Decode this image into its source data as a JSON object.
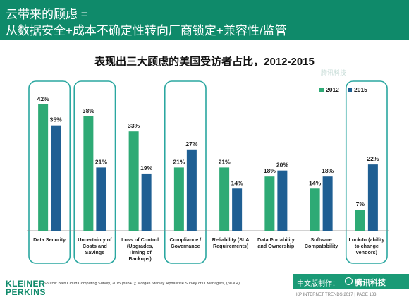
{
  "header": {
    "line1": "云带来的顾虑 =",
    "line2": "从数据安全+成本不确定性转向厂商锁定+兼容性/监管"
  },
  "chart_data": {
    "type": "bar",
    "title": "表现出三大顾虑的美国受访者占比，2012-2015",
    "categories": [
      "Data Security",
      "Uncertainty of Costs and Savings",
      "Loss of Control (Upgrades, Timing of Backups)",
      "Compliance / Governance",
      "Reliability (SLA Requirements)",
      "Data Portability and Ownership",
      "Software Compatability",
      "Lock-In (ability to change vendors)"
    ],
    "category_lines": [
      [
        "Data Security"
      ],
      [
        "Uncertainty of",
        "Costs and",
        "Savings"
      ],
      [
        "Loss of Control",
        "(Upgrades,",
        "Timing of",
        "Backups)"
      ],
      [
        "Compliance /",
        "Governance"
      ],
      [
        "Reliability (SLA",
        "Requirements)"
      ],
      [
        "Data Portability",
        "and Ownership"
      ],
      [
        "Software",
        "Compatability"
      ],
      [
        "Lock-In (ability",
        "to change",
        "vendors)"
      ]
    ],
    "series": [
      {
        "name": "2012",
        "color": "#2eaa75",
        "values": [
          42,
          38,
          33,
          21,
          21,
          18,
          14,
          7
        ]
      },
      {
        "name": "2015",
        "color": "#1f5f93",
        "values": [
          35,
          21,
          19,
          27,
          14,
          20,
          18,
          22
        ]
      }
    ],
    "value_suffix": "%",
    "ylim": [
      0,
      45
    ],
    "legend_position": "top-right",
    "highlighted_categories": [
      0,
      1,
      3,
      7
    ],
    "highlight_color": "#2aa7a0",
    "grid": false
  },
  "source": "Source: Bain Cloud Computing Survey, 2015 (n=347); Morgan Stanley AlphaWise Survey of IT Managers, (n=304)",
  "logo": {
    "line1": "KLEINER",
    "line2": "PERKINS"
  },
  "footer": {
    "made_by": "中文版制作：",
    "brand": "腾讯科技",
    "trends": "KP INTERNET TRENDS 2017  |  PAGE 183"
  },
  "watermark": "腾讯科技"
}
